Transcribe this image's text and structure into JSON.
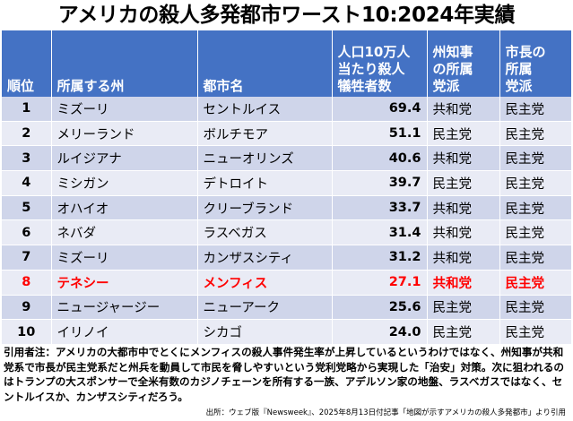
{
  "title": "アメリカの殺人多発都市ワースト10:2024年実績",
  "chart_data": {
    "type": "table",
    "headers": {
      "rank": "順位",
      "state": "所属する州",
      "city": "都市名",
      "rate": [
        "人口10万人",
        "当たり殺人",
        "犠牲者数"
      ],
      "governor": [
        "州知事",
        "の所属",
        "党派"
      ],
      "mayor": [
        "市長の",
        "所属",
        "党派"
      ]
    },
    "rows": [
      {
        "rank": "1",
        "state": "ミズーリ",
        "city": "セントルイス",
        "rate": 69.4,
        "governor": "共和党",
        "mayor": "民主党",
        "highlight": false
      },
      {
        "rank": "2",
        "state": "メリーランド",
        "city": "ボルチモア",
        "rate": 51.1,
        "governor": "民主党",
        "mayor": "民主党",
        "highlight": false
      },
      {
        "rank": "3",
        "state": "ルイジアナ",
        "city": "ニューオリンズ",
        "rate": 40.6,
        "governor": "共和党",
        "mayor": "民主党",
        "highlight": false
      },
      {
        "rank": "4",
        "state": "ミシガン",
        "city": "デトロイト",
        "rate": 39.7,
        "governor": "民主党",
        "mayor": "民主党",
        "highlight": false
      },
      {
        "rank": "5",
        "state": "オハイオ",
        "city": "クリーブランド",
        "rate": 33.7,
        "governor": "共和党",
        "mayor": "民主党",
        "highlight": false
      },
      {
        "rank": "6",
        "state": "ネバダ",
        "city": "ラスベガス",
        "rate": 31.4,
        "governor": "共和党",
        "mayor": "民主党",
        "highlight": false
      },
      {
        "rank": "7",
        "state": "ミズーリ",
        "city": "カンザスシティ",
        "rate": 31.2,
        "governor": "共和党",
        "mayor": "民主党",
        "highlight": false
      },
      {
        "rank": "8",
        "state": "テネシー",
        "city": "メンフィス",
        "rate": 27.1,
        "governor": "共和党",
        "mayor": "民主党",
        "highlight": true
      },
      {
        "rank": "9",
        "state": "ニュージャージー",
        "city": "ニューアーク",
        "rate": 25.6,
        "governor": "民主党",
        "mayor": "民主党",
        "highlight": false
      },
      {
        "rank": "10",
        "state": "イリノイ",
        "city": "シカゴ",
        "rate": 24.0,
        "governor": "民主党",
        "mayor": "民主党",
        "highlight": false
      }
    ]
  },
  "note": "引用者注：アメリカの大都市中でとくにメンフィスの殺人事件発生率が上昇しているというわけではなく、州知事が共和党系で市長が民主党系だと州兵を動員して市民を脅しやすいという党利党略から実現した「治安」対策。次に狙われるのはトランプの大スポンサーで全米有数のカジノチェーンを所有する一族、アデルソン家の地盤、ラスベガスではなく、セントルイスか、カンザスシティだろう。",
  "source": "出所：ウェブ版『Newsweek』、2025年8月13日付記事「地図が示すアメリカの殺人多発都市」より引用",
  "colors": {
    "header": "#4472c4",
    "row_odd": "#cfd5ea",
    "row_even": "#e9ebf5",
    "highlight_text": "#ff0000"
  }
}
